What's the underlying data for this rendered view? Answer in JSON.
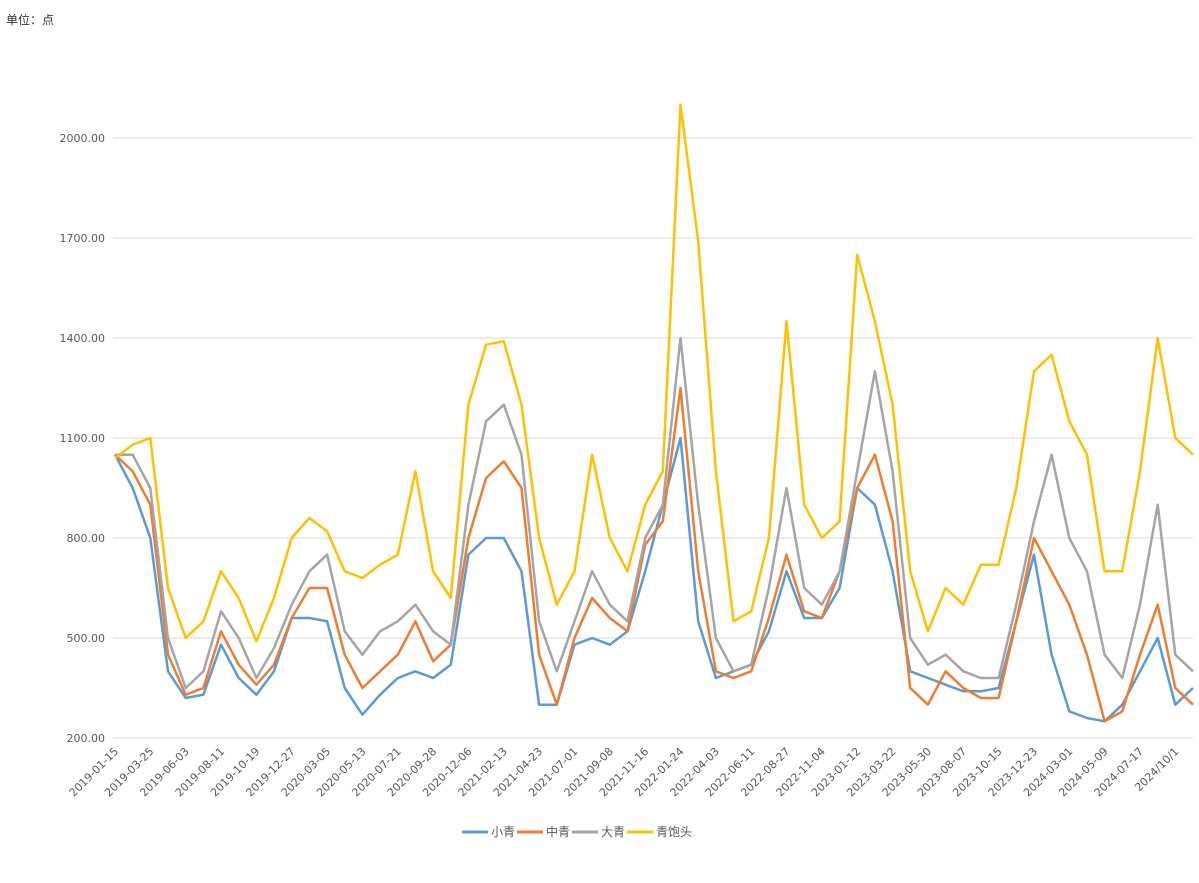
{
  "chart_data": {
    "type": "line",
    "unit_label": "单位：点",
    "categories": [
      "2019-01-15",
      null,
      "2019-03-25",
      null,
      "2019-06-03",
      null,
      "2019-08-11",
      null,
      "2019-10-19",
      null,
      "2019-12-27",
      null,
      "2020-03-05",
      null,
      "2020-05-13",
      null,
      "2020-07-21",
      null,
      "2020-09-28",
      null,
      "2020-12-06",
      null,
      "2021-02-13",
      null,
      "2021-04-23",
      null,
      "2021-07-01",
      null,
      "2021-09-08",
      null,
      "2021-11-16",
      null,
      "2022-01-24",
      null,
      "2022-04-03",
      null,
      "2022-06-11",
      null,
      "2022-08-27",
      null,
      "2022-11-04",
      null,
      "2023-01-12",
      null,
      "2023-03-22",
      null,
      "2023-05-30",
      null,
      "2023-08-07",
      null,
      "2023-10-15",
      null,
      "2023-12-23",
      null,
      "2024-03-01",
      null,
      "2024-05-09",
      null,
      "2024-07-17",
      null,
      "2024/10/1",
      null
    ],
    "series": [
      {
        "name": "小青",
        "color": "#5b9bd5",
        "values": [
          1050,
          950,
          800,
          400,
          320,
          330,
          480,
          380,
          330,
          400,
          560,
          560,
          550,
          350,
          270,
          330,
          380,
          400,
          380,
          420,
          750,
          800,
          800,
          700,
          300,
          300,
          480,
          500,
          480,
          520,
          700,
          900,
          1100,
          550,
          380,
          400,
          420,
          520,
          700,
          560,
          560,
          650,
          950,
          900,
          700,
          400,
          380,
          360,
          340,
          340,
          350,
          550,
          750,
          450,
          280,
          260,
          250,
          300,
          400,
          500,
          300,
          350
        ]
      },
      {
        "name": "中青",
        "color": "#ed7d31",
        "values": [
          1050,
          1000,
          900,
          450,
          330,
          350,
          520,
          420,
          360,
          420,
          560,
          650,
          650,
          450,
          350,
          400,
          450,
          550,
          430,
          480,
          800,
          980,
          1030,
          950,
          450,
          300,
          500,
          620,
          560,
          520,
          780,
          850,
          1250,
          700,
          400,
          380,
          400,
          560,
          750,
          580,
          560,
          700,
          950,
          1050,
          850,
          350,
          300,
          400,
          350,
          320,
          320,
          550,
          800,
          700,
          600,
          450,
          250,
          280,
          450,
          600,
          350,
          300
        ]
      },
      {
        "name": "大青",
        "color": "#a5a5a5",
        "values": [
          1050,
          1050,
          950,
          500,
          350,
          400,
          580,
          500,
          380,
          470,
          600,
          700,
          750,
          520,
          450,
          520,
          550,
          600,
          520,
          480,
          900,
          1150,
          1200,
          1050,
          550,
          400,
          550,
          700,
          600,
          550,
          800,
          900,
          1400,
          900,
          500,
          400,
          420,
          650,
          950,
          650,
          600,
          700,
          1000,
          1300,
          1000,
          500,
          420,
          450,
          400,
          380,
          380,
          600,
          850,
          1050,
          800,
          700,
          450,
          380,
          600,
          900,
          450,
          400
        ]
      },
      {
        "name": "青饱头",
        "color": "#ffc000",
        "values": [
          1040,
          1080,
          1100,
          650,
          500,
          550,
          700,
          620,
          490,
          620,
          800,
          860,
          820,
          700,
          680,
          720,
          750,
          1000,
          700,
          620,
          1200,
          1380,
          1390,
          1200,
          800,
          600,
          700,
          1050,
          800,
          700,
          900,
          1000,
          2100,
          1690,
          1000,
          550,
          580,
          800,
          1450,
          900,
          800,
          850,
          1650,
          1450,
          1200,
          700,
          520,
          650,
          600,
          720,
          720,
          950,
          1300,
          1350,
          1150,
          1050,
          700,
          700,
          1000,
          1400,
          1100,
          1050
        ]
      }
    ],
    "ylim": [
      200,
      2300
    ],
    "yticks": [
      {
        "value": 200,
        "label": "200.00"
      },
      {
        "value": 500,
        "label": "500.00"
      },
      {
        "value": 800,
        "label": "800.00"
      },
      {
        "value": 1100,
        "label": "1100.00"
      },
      {
        "value": 1400,
        "label": "1400.00"
      },
      {
        "value": 1700,
        "label": "1700.00"
      },
      {
        "value": 2000,
        "label": "2000.00"
      }
    ],
    "grid": true
  }
}
